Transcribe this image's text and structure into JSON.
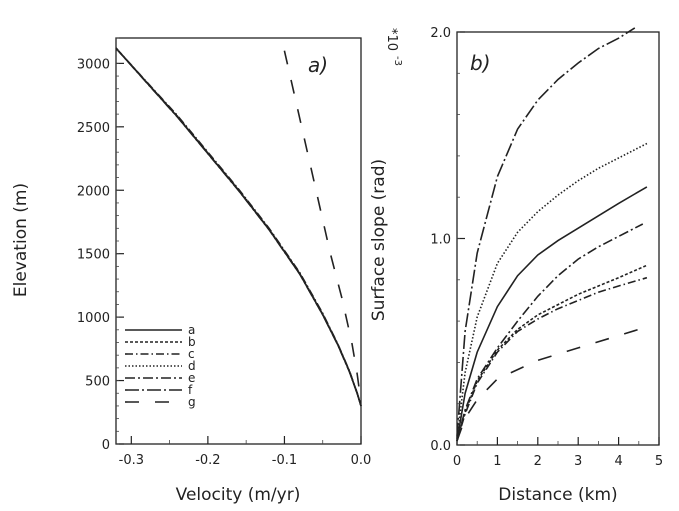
{
  "chart_data": [
    {
      "type": "line",
      "panel_label": "a)",
      "xlabel": "Velocity (m/yr)",
      "ylabel": "Elevation (m)",
      "xlim": [
        -0.32,
        0.0
      ],
      "ylim": [
        0,
        3200
      ],
      "x_ticks": [
        -0.3,
        -0.2,
        -0.1,
        0.0
      ],
      "x_tick_labels": [
        "-0.3",
        "-0.2",
        "-0.1",
        "0.0"
      ],
      "y_ticks": [
        0,
        500,
        1000,
        1500,
        2000,
        2500,
        3000
      ],
      "y_tick_labels": [
        "0",
        "500",
        "1000",
        "1500",
        "2000",
        "2500",
        "3000"
      ],
      "legend_position": "lower-left",
      "series": [
        {
          "name": "a",
          "dash": "",
          "points": [
            [
              -0.32,
              3120
            ],
            [
              -0.28,
              2850
            ],
            [
              -0.24,
              2580
            ],
            [
              -0.2,
              2290
            ],
            [
              -0.16,
              2000
            ],
            [
              -0.12,
              1690
            ],
            [
              -0.08,
              1340
            ],
            [
              -0.05,
              1020
            ],
            [
              -0.03,
              780
            ],
            [
              -0.015,
              570
            ],
            [
              -0.005,
              400
            ],
            [
              0.0,
              300
            ]
          ]
        },
        {
          "name": "b",
          "dash": "3,2",
          "points": [
            [
              -0.32,
              3120
            ],
            [
              -0.28,
              2850
            ],
            [
              -0.24,
              2580
            ],
            [
              -0.2,
              2290
            ],
            [
              -0.16,
              2000
            ],
            [
              -0.12,
              1690
            ],
            [
              -0.08,
              1340
            ],
            [
              -0.05,
              1020
            ],
            [
              -0.03,
              780
            ],
            [
              -0.015,
              570
            ],
            [
              -0.005,
              400
            ],
            [
              0.0,
              300
            ]
          ]
        },
        {
          "name": "c",
          "dash": "8,3,1.5,3",
          "points": [
            [
              -0.32,
              3120
            ],
            [
              -0.28,
              2855
            ],
            [
              -0.24,
              2590
            ],
            [
              -0.2,
              2300
            ],
            [
              -0.16,
              2010
            ],
            [
              -0.12,
              1700
            ],
            [
              -0.08,
              1350
            ],
            [
              -0.05,
              1030
            ],
            [
              -0.03,
              785
            ],
            [
              -0.015,
              575
            ],
            [
              -0.005,
              400
            ],
            [
              0.0,
              300
            ]
          ]
        },
        {
          "name": "d",
          "dash": "1.5,2",
          "points": [
            [
              -0.32,
              3120
            ],
            [
              -0.28,
              2852
            ],
            [
              -0.24,
              2585
            ],
            [
              -0.2,
              2295
            ],
            [
              -0.16,
              2005
            ],
            [
              -0.12,
              1695
            ],
            [
              -0.08,
              1345
            ],
            [
              -0.05,
              1025
            ],
            [
              -0.03,
              782
            ],
            [
              -0.015,
              572
            ],
            [
              -0.005,
              400
            ],
            [
              0.0,
              300
            ]
          ]
        },
        {
          "name": "e",
          "dash": "10,3,2,3",
          "points": [
            [
              -0.32,
              3120
            ],
            [
              -0.28,
              2848
            ],
            [
              -0.24,
              2578
            ],
            [
              -0.2,
              2288
            ],
            [
              -0.16,
              1998
            ],
            [
              -0.12,
              1688
            ],
            [
              -0.08,
              1338
            ],
            [
              -0.05,
              1018
            ],
            [
              -0.03,
              778
            ],
            [
              -0.015,
              568
            ],
            [
              -0.005,
              400
            ],
            [
              0.0,
              300
            ]
          ]
        },
        {
          "name": "f",
          "dash": "14,3,2,3",
          "points": [
            [
              -0.32,
              3120
            ],
            [
              -0.28,
              2851
            ],
            [
              -0.24,
              2582
            ],
            [
              -0.2,
              2292
            ],
            [
              -0.16,
              2002
            ],
            [
              -0.12,
              1692
            ],
            [
              -0.08,
              1342
            ],
            [
              -0.05,
              1022
            ],
            [
              -0.03,
              780
            ],
            [
              -0.015,
              570
            ],
            [
              -0.005,
              400
            ],
            [
              0.0,
              300
            ]
          ]
        },
        {
          "name": "g",
          "dash": "14,16",
          "points": [
            [
              -0.1,
              3100
            ],
            [
              -0.085,
              2700
            ],
            [
              -0.07,
              2300
            ],
            [
              -0.055,
              1900
            ],
            [
              -0.04,
              1500
            ],
            [
              -0.025,
              1150
            ],
            [
              -0.012,
              800
            ],
            [
              -0.005,
              550
            ],
            [
              0.0,
              330
            ]
          ]
        }
      ]
    },
    {
      "type": "line",
      "panel_label": "b)",
      "xlabel": "Distance (km)",
      "ylabel": "Surface slope (rad)",
      "y_multiplier": "*10",
      "y_multiplier_exp": "-3",
      "xlim": [
        0,
        5
      ],
      "ylim": [
        0,
        2.0
      ],
      "x_ticks": [
        0,
        1,
        2,
        3,
        4,
        5
      ],
      "x_tick_labels": [
        "0",
        "1",
        "2",
        "3",
        "4",
        "5"
      ],
      "y_ticks": [
        0,
        1.0,
        2.0
      ],
      "y_tick_labels": [
        "0.0",
        "1.0",
        "2.0"
      ],
      "series": [
        {
          "name": "a",
          "dash": "",
          "points": [
            [
              0,
              0.02
            ],
            [
              0.2,
              0.25
            ],
            [
              0.5,
              0.45
            ],
            [
              1,
              0.67
            ],
            [
              1.5,
              0.82
            ],
            [
              2,
              0.92
            ],
            [
              2.5,
              0.99
            ],
            [
              3,
              1.05
            ],
            [
              3.5,
              1.11
            ],
            [
              4,
              1.17
            ],
            [
              4.7,
              1.25
            ]
          ]
        },
        {
          "name": "b",
          "dash": "3,2",
          "points": [
            [
              0,
              0.02
            ],
            [
              0.2,
              0.16
            ],
            [
              0.5,
              0.31
            ],
            [
              1,
              0.46
            ],
            [
              1.5,
              0.56
            ],
            [
              2,
              0.63
            ],
            [
              2.5,
              0.68
            ],
            [
              3,
              0.73
            ],
            [
              3.5,
              0.77
            ],
            [
              4,
              0.81
            ],
            [
              4.7,
              0.87
            ]
          ]
        },
        {
          "name": "c",
          "dash": "8,3,1.5,3",
          "points": [
            [
              0,
              0.02
            ],
            [
              0.2,
              0.15
            ],
            [
              0.5,
              0.3
            ],
            [
              1,
              0.45
            ],
            [
              1.5,
              0.55
            ],
            [
              2,
              0.61
            ],
            [
              2.5,
              0.66
            ],
            [
              3,
              0.7
            ],
            [
              3.5,
              0.74
            ],
            [
              4,
              0.77
            ],
            [
              4.7,
              0.81
            ]
          ]
        },
        {
          "name": "d",
          "dash": "1.5,2",
          "points": [
            [
              0,
              0.03
            ],
            [
              0.2,
              0.35
            ],
            [
              0.5,
              0.62
            ],
            [
              1,
              0.88
            ],
            [
              1.5,
              1.03
            ],
            [
              2,
              1.13
            ],
            [
              2.5,
              1.21
            ],
            [
              3,
              1.28
            ],
            [
              3.5,
              1.34
            ],
            [
              4,
              1.39
            ],
            [
              4.7,
              1.46
            ]
          ]
        },
        {
          "name": "e",
          "dash": "10,3,2,3",
          "points": [
            [
              0,
              0.02
            ],
            [
              0.2,
              0.17
            ],
            [
              0.5,
              0.32
            ],
            [
              1,
              0.47
            ],
            [
              1.5,
              0.6
            ],
            [
              2,
              0.72
            ],
            [
              2.5,
              0.82
            ],
            [
              3,
              0.9
            ],
            [
              3.5,
              0.96
            ],
            [
              4,
              1.01
            ],
            [
              4.6,
              1.07
            ]
          ]
        },
        {
          "name": "f",
          "dash": "14,3,2,3",
          "points": [
            [
              0,
              0.04
            ],
            [
              0.2,
              0.55
            ],
            [
              0.5,
              0.93
            ],
            [
              1,
              1.3
            ],
            [
              1.5,
              1.53
            ],
            [
              2,
              1.67
            ],
            [
              2.5,
              1.77
            ],
            [
              3,
              1.85
            ],
            [
              3.5,
              1.92
            ],
            [
              4,
              1.97
            ],
            [
              4.4,
              2.02
            ]
          ]
        },
        {
          "name": "g",
          "dash": "14,16",
          "points": [
            [
              0,
              0.02
            ],
            [
              0.2,
              0.13
            ],
            [
              0.5,
              0.22
            ],
            [
              1,
              0.32
            ],
            [
              2,
              0.41
            ],
            [
              3,
              0.47
            ],
            [
              4,
              0.53
            ],
            [
              4.5,
              0.56
            ]
          ]
        }
      ]
    }
  ]
}
